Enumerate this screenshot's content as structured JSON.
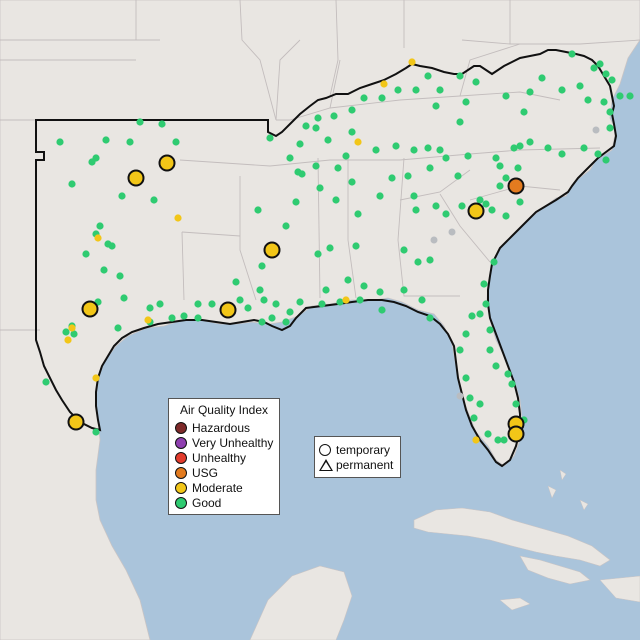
{
  "legend": {
    "title": "Air Quality Index",
    "categories": [
      {
        "label": "Hazardous",
        "color": "#7e2a2a"
      },
      {
        "label": "Very Unhealthy",
        "color": "#8f3fb0"
      },
      {
        "label": "Unhealthy",
        "color": "#e23b2c"
      },
      {
        "label": "USG",
        "color": "#e37b1f"
      },
      {
        "label": "Moderate",
        "color": "#f2c618"
      },
      {
        "label": "Good",
        "color": "#2fcb71"
      }
    ]
  },
  "monitor_types": {
    "temporary": "temporary",
    "permanent": "permanent"
  },
  "colors": {
    "ocean": "#aac4db",
    "land": "#e9e6e2",
    "state_border": "#c3bdbd",
    "region_border": "#111111"
  }
}
